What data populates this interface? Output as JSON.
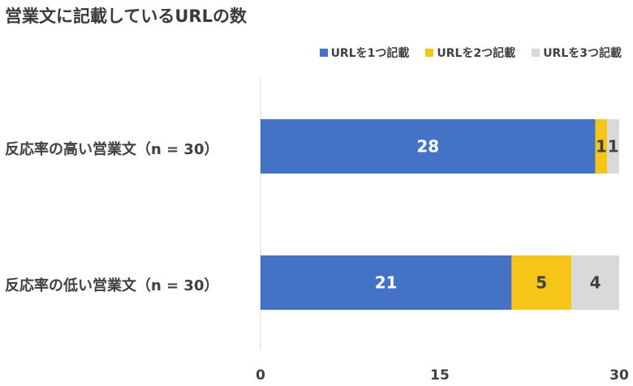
{
  "chart_data": {
    "type": "bar",
    "orientation": "horizontal",
    "stacked": true,
    "title": "営業文に記載しているURLの数",
    "categories": [
      "反応率の高い営業文（n = 30）",
      "反応率の低い営業文（n = 30）"
    ],
    "series": [
      {
        "name": "URLを1つ記載",
        "values": [
          28,
          21
        ],
        "color": "#4472C4",
        "label_color": "#ffffff"
      },
      {
        "name": "URLを2つ記載",
        "values": [
          1,
          5
        ],
        "color": "#F5C518",
        "label_color": "#404040"
      },
      {
        "name": "URLを3つ記載",
        "values": [
          1,
          4
        ],
        "color": "#D9D9D9",
        "label_color": "#404040"
      }
    ],
    "xlim": [
      0,
      30
    ],
    "xticks": [
      "0",
      "15",
      "30"
    ],
    "grid": false,
    "legend": "top-right"
  }
}
